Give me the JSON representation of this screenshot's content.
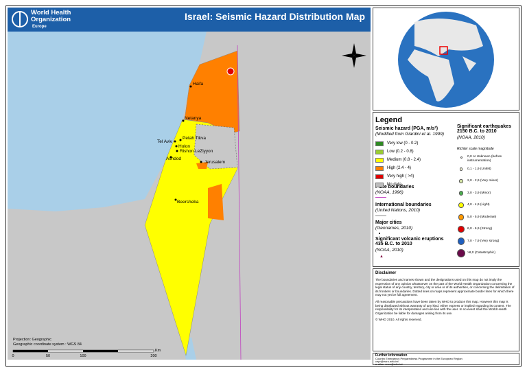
{
  "header": {
    "org": "World Health Organization",
    "region": "Europe",
    "title": "Israel: Seismic Hazard Distribution Map"
  },
  "map": {
    "cities": [
      "Haifa",
      "Netanya",
      "Tel Aviv",
      "Petah Tikva",
      "Holon",
      "Rishon LeZiyyon",
      "Ashdod",
      "Jerusalem",
      "Beersheba"
    ],
    "projection": "Projection: Geographic",
    "coordinate_system": "Geographic coordinate system : WGS 84",
    "scale_labels": [
      "0",
      "50",
      "100",
      "200"
    ],
    "scale_unit": "Km"
  },
  "legend": {
    "title": "Legend",
    "hazard": {
      "title": "Seismic hazard (PGA, m/s²)",
      "source": "(Modified from Giardini et al. 1999)",
      "items": [
        {
          "label": "Very low (0 - 0.2)",
          "color": "#2e8b22"
        },
        {
          "label": "Low (0.2 - 0.8)",
          "color": "#9acd32"
        },
        {
          "label": "Medium (0.8 - 2.4)",
          "color": "#ffff00"
        },
        {
          "label": "High (2.4 - 4)",
          "color": "#ff8000"
        },
        {
          "label": "Very high ( >4)",
          "color": "#e00000"
        },
        {
          "label": "No data",
          "color": "#bdbdbd"
        }
      ]
    },
    "plates": {
      "title": "Plate boundaries",
      "source": "(NOAA, 1996)"
    },
    "borders": {
      "title": "International boundaries",
      "source": "(United Nations, 2010)"
    },
    "cities": {
      "title": "Major cities",
      "source": "(Geonames, 2010)"
    },
    "volcanoes": {
      "title": "Significant volcanic eruptions 435 B.C. to 2010",
      "source": "(NOAA, 2010)"
    },
    "earthquakes": {
      "title": "Significant earthquakes 2150 B.C. to 2010",
      "source": "(NOAA, 2010)",
      "scale": "Richter scale magnitude",
      "items": [
        {
          "label": "0,0 or Unknown (before instrumentation)",
          "color": "#ffffff"
        },
        {
          "label": "0,1 - 1,9 (Unfelt)",
          "color": "#ffffe0"
        },
        {
          "label": "2,0 - 2,9 (Very minor)",
          "color": "#d8e8a8"
        },
        {
          "label": "3,0 - 3,9 (Minor)",
          "color": "#4caf50"
        },
        {
          "label": "4,0 - 4,9 (Light)",
          "color": "#ffff00"
        },
        {
          "label": "5,0 - 5,9 (Moderate)",
          "color": "#ff9900"
        },
        {
          "label": "6,0 - 6,9 (Strong)",
          "color": "#e00000"
        },
        {
          "label": "7,0 - 7,9 (Very strong)",
          "color": "#1f5fbf"
        },
        {
          "label": ">8,0 (Catastrophic)",
          "color": "#6a0a4a"
        }
      ]
    }
  },
  "disclaimer": {
    "title": "Disclaimer",
    "paragraphs": [
      "The boundaries and names shown and the designations used on this map do not imply the expression of any opinion whatsoever on the part of the World Health Organization concerning the legal status of any country, territory, city or area or of its authorities, or concerning the delimitation of its frontiers or boundaries. Dotted lines on maps represent approximate border lines for which there may not yet be full agreement.",
      "All reasonable precautions have been taken by WHO to produce this map. However this map is being distributed without warranty of any kind, either express or implied regarding its content. The responsibility for its interpretation and use lies with the user. In no event shall the World Health Organization be liable for damages arising from its use.",
      "© WHO 2010. All rights reserved."
    ]
  },
  "further_info": {
    "title": "Further information",
    "lines": [
      "Country Emergency Preparedness Programme in the European Region:",
      "cepr@euro.who.int",
      "e-atlas: crsm@who.int"
    ]
  }
}
